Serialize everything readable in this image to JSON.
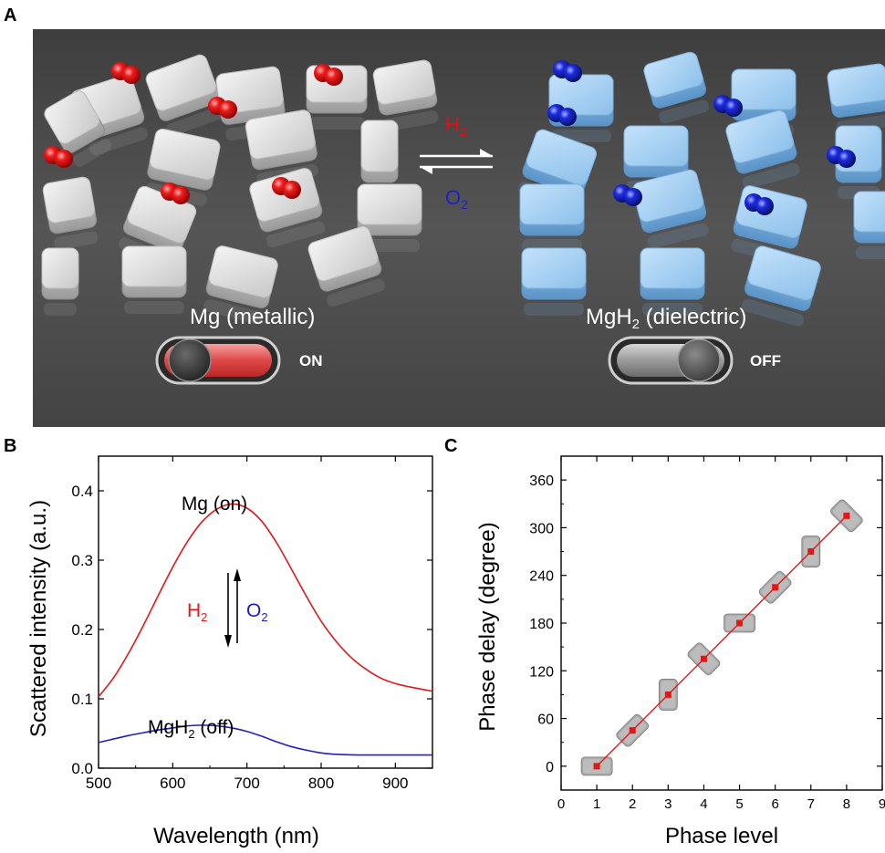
{
  "panels": {
    "a": {
      "letter": "A",
      "left_label": "Mg (metallic)",
      "right_label_main": "MgH",
      "right_label_sub": "2",
      "right_label_rest": " (dielectric)",
      "arrow_top_main": "H",
      "arrow_top_sub": "2",
      "arrow_bottom_main": "O",
      "arrow_bottom_sub": "2",
      "switch_on_label": "ON",
      "switch_off_label": "OFF",
      "colors": {
        "background": "#4a4a4a",
        "h2": "#e01010",
        "o2": "#1a22cc",
        "switch_on_fill": "#e85a5a"
      }
    },
    "b": {
      "letter": "B"
    },
    "c": {
      "letter": "C"
    }
  },
  "chart_data": [
    {
      "type": "line",
      "xlabel": "Wavelength (nm)",
      "ylabel": "Scattered intensity (a.u.)",
      "xlim": [
        500,
        950
      ],
      "ylim": [
        0,
        0.45
      ],
      "xticks": [
        500,
        600,
        700,
        800,
        900
      ],
      "xtick_labels": [
        "500",
        "600",
        "700",
        "800",
        "900"
      ],
      "yticks": [
        0.0,
        0.1,
        0.2,
        0.3,
        0.4
      ],
      "ytick_labels": [
        "0.0",
        "0.1",
        "0.2",
        "0.3",
        "0.4"
      ],
      "grid": false,
      "annotations": {
        "mg_label": "Mg (on)",
        "mgh2_main": "MgH",
        "mgh2_sub": "2",
        "mgh2_rest": " (off)",
        "h2_main": "H",
        "h2_sub": "2",
        "o2_main": "O",
        "o2_sub": "2"
      },
      "series": [
        {
          "color": "#e01818",
          "x": [
            500,
            520,
            540,
            560,
            580,
            600,
            620,
            640,
            660,
            680,
            700,
            720,
            740,
            760,
            780,
            800,
            820,
            840,
            860,
            880,
            900,
            920,
            950
          ],
          "y": [
            0.103,
            0.13,
            0.165,
            0.205,
            0.248,
            0.29,
            0.327,
            0.356,
            0.374,
            0.381,
            0.375,
            0.356,
            0.325,
            0.287,
            0.248,
            0.212,
            0.183,
            0.16,
            0.143,
            0.13,
            0.122,
            0.117,
            0.111
          ]
        },
        {
          "color": "#2020c0",
          "x": [
            500,
            520,
            540,
            560,
            580,
            600,
            620,
            640,
            660,
            680,
            700,
            720,
            740,
            760,
            780,
            800,
            820,
            850,
            880,
            920,
            950
          ],
          "y": [
            0.037,
            0.042,
            0.047,
            0.051,
            0.055,
            0.058,
            0.061,
            0.062,
            0.061,
            0.058,
            0.053,
            0.046,
            0.038,
            0.031,
            0.026,
            0.022,
            0.02,
            0.019,
            0.019,
            0.019,
            0.019
          ]
        }
      ]
    },
    {
      "type": "scatter",
      "xlabel": "Phase level",
      "ylabel": "Phase delay (degree)",
      "xlim": [
        0,
        9
      ],
      "ylim": [
        -30,
        390
      ],
      "xticks": [
        0,
        1,
        2,
        3,
        4,
        5,
        6,
        7,
        8,
        9
      ],
      "xtick_labels": [
        "0",
        "1",
        "2",
        "3",
        "4",
        "5",
        "6",
        "7",
        "8",
        "9"
      ],
      "yticks": [
        0,
        60,
        120,
        180,
        240,
        300,
        360
      ],
      "ytick_labels": [
        "0",
        "60",
        "120",
        "180",
        "240",
        "300",
        "360"
      ],
      "grid": false,
      "series": [
        {
          "color": "#e01818",
          "x": [
            1,
            2,
            3,
            4,
            5,
            6,
            7,
            8
          ],
          "y": [
            0,
            45,
            90,
            135,
            180,
            225,
            270,
            315
          ]
        }
      ]
    }
  ]
}
